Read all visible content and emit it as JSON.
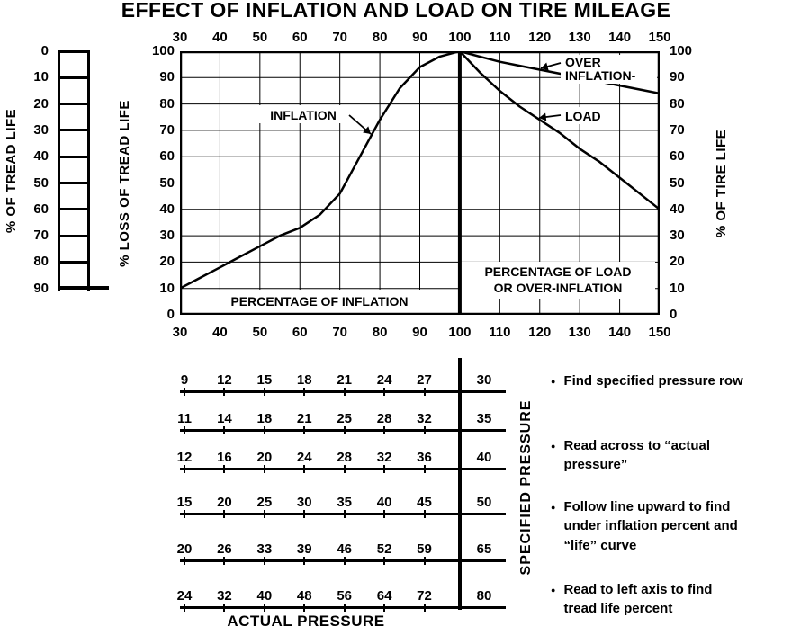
{
  "page": {
    "title": "EFFECT OF INFLATION AND LOAD ON TIRE MILEAGE"
  },
  "chart_data": {
    "type": "line",
    "title": "EFFECT OF INFLATION AND LOAD ON TIRE MILEAGE",
    "x_range": [
      30,
      150
    ],
    "y_range": [
      0,
      100
    ],
    "grid": true,
    "x_ticks": [
      30,
      40,
      50,
      60,
      70,
      80,
      90,
      100,
      110,
      120,
      130,
      140,
      150
    ],
    "reference_line_x": 100,
    "axes": {
      "top_tick_labels": [
        "30",
        "40",
        "50",
        "60",
        "70",
        "80",
        "90",
        "100",
        "110",
        "120",
        "130",
        "140",
        "150"
      ],
      "bottom_tick_labels": [
        "30",
        "40",
        "50",
        "60",
        "70",
        "80",
        "90",
        "100",
        "110",
        "120",
        "130",
        "140",
        "150"
      ],
      "left_outer": {
        "label": "% OF TREAD LIFE",
        "tick_labels": [
          "0",
          "10",
          "20",
          "30",
          "40",
          "50",
          "60",
          "70",
          "80",
          "90"
        ]
      },
      "left_inner": {
        "label": "% LOSS OF TREAD LIFE",
        "tick_labels": [
          "100",
          "90",
          "80",
          "70",
          "60",
          "50",
          "40",
          "30",
          "20",
          "10",
          "0"
        ]
      },
      "right": {
        "label": "% OF TIRE LIFE",
        "tick_labels": [
          "100",
          "90",
          "80",
          "70",
          "60",
          "50",
          "40",
          "30",
          "20",
          "10",
          "0"
        ]
      }
    },
    "series": [
      {
        "name": "INFLATION",
        "points": [
          [
            30,
            10
          ],
          [
            35,
            14
          ],
          [
            40,
            18
          ],
          [
            45,
            22
          ],
          [
            50,
            26
          ],
          [
            55,
            30
          ],
          [
            60,
            33
          ],
          [
            65,
            38
          ],
          [
            70,
            46
          ],
          [
            75,
            60
          ],
          [
            80,
            74
          ],
          [
            85,
            86
          ],
          [
            90,
            94
          ],
          [
            95,
            98
          ],
          [
            100,
            100
          ]
        ]
      },
      {
        "name": "LOAD",
        "points": [
          [
            100,
            100
          ],
          [
            105,
            92
          ],
          [
            110,
            85
          ],
          [
            115,
            79
          ],
          [
            120,
            74
          ],
          [
            125,
            69
          ],
          [
            130,
            63
          ],
          [
            135,
            58
          ],
          [
            140,
            52
          ],
          [
            145,
            46
          ],
          [
            150,
            40
          ]
        ]
      },
      {
        "name": "OVER INFLATION",
        "points": [
          [
            100,
            100
          ],
          [
            105,
            98
          ],
          [
            110,
            96
          ],
          [
            115,
            94.5
          ],
          [
            120,
            93
          ],
          [
            125,
            91.5
          ],
          [
            130,
            90
          ],
          [
            135,
            88.5
          ],
          [
            140,
            87
          ],
          [
            145,
            85.5
          ],
          [
            150,
            84
          ]
        ]
      }
    ],
    "annotations": {
      "inflation": "INFLATION",
      "load": "LOAD",
      "over_inflation_line1": "OVER",
      "over_inflation_line2": "INFLATION-",
      "region_left": "PERCENTAGE OF INFLATION",
      "region_right_line1": "PERCENTAGE OF LOAD",
      "region_right_line2": "OR OVER-INFLATION"
    }
  },
  "pressure_table": {
    "x_axis_label": "ACTUAL PRESSURE",
    "y_axis_label": "SPECIFIED PRESSURE",
    "rows": [
      {
        "actual": [
          "9",
          "12",
          "15",
          "18",
          "21",
          "24",
          "27"
        ],
        "specified": "30"
      },
      {
        "actual": [
          "11",
          "14",
          "18",
          "21",
          "25",
          "28",
          "32"
        ],
        "specified": "35"
      },
      {
        "actual": [
          "12",
          "16",
          "20",
          "24",
          "28",
          "32",
          "36"
        ],
        "specified": "40"
      },
      {
        "actual": [
          "15",
          "20",
          "25",
          "30",
          "35",
          "40",
          "45"
        ],
        "specified": "50"
      },
      {
        "actual": [
          "20",
          "26",
          "33",
          "39",
          "46",
          "52",
          "59"
        ],
        "specified": "65"
      },
      {
        "actual": [
          "24",
          "32",
          "40",
          "48",
          "56",
          "64",
          "72"
        ],
        "specified": "80"
      }
    ]
  },
  "instructions": [
    "Find specified pressure row",
    "Read across to “actual pressure”",
    "Follow line upward to find under inflation percent and “life” curve",
    "Read to left axis to find tread life percent"
  ]
}
